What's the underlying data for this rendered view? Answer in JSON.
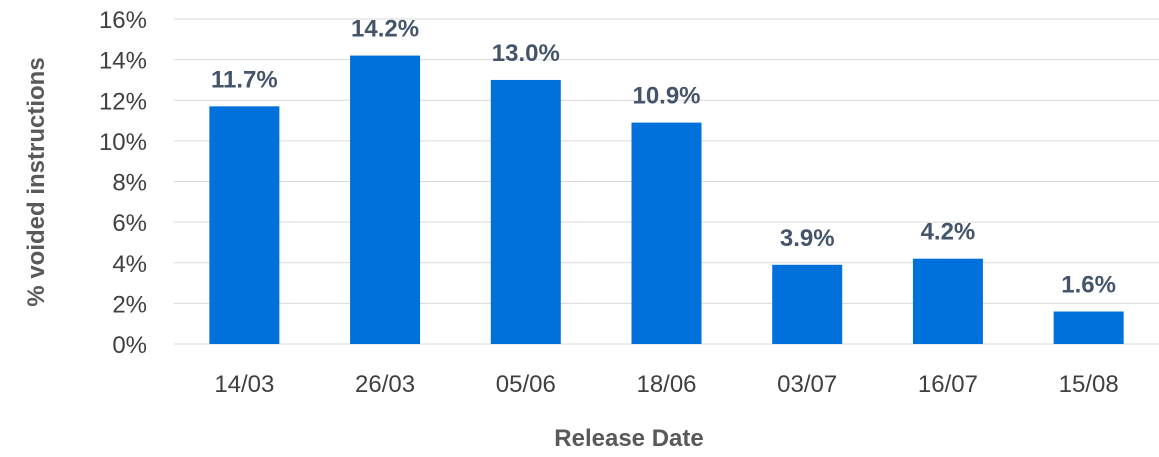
{
  "chart_data": {
    "type": "bar",
    "categories": [
      "14/03",
      "26/03",
      "05/06",
      "18/06",
      "03/07",
      "16/07",
      "15/08"
    ],
    "values": [
      11.7,
      14.2,
      13.0,
      10.9,
      3.9,
      4.2,
      1.6
    ],
    "data_labels": [
      "11.7%",
      "14.2%",
      "13.0%",
      "10.9%",
      "3.9%",
      "4.2%",
      "1.6%"
    ],
    "title": "",
    "xlabel": "Release Date",
    "ylabel": "% voided instructions",
    "ylim": [
      0,
      16
    ],
    "y_ticks": [
      0,
      2,
      4,
      6,
      8,
      10,
      12,
      14,
      16
    ],
    "y_tick_labels": [
      "0%",
      "2%",
      "4%",
      "6%",
      "8%",
      "10%",
      "12%",
      "14%",
      "16%"
    ],
    "grid": true,
    "legend": "none",
    "bar_color": "#0070DA",
    "label_color": "#44546A"
  }
}
